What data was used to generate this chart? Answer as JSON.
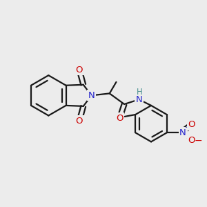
{
  "bg_color": "#ececec",
  "bond_color": "#1a1a1a",
  "bond_width": 1.6,
  "atom_colors": {
    "N": "#2222cc",
    "O": "#cc0000",
    "H": "#4a9090",
    "C": "#1a1a1a"
  },
  "font_size": 9.5
}
